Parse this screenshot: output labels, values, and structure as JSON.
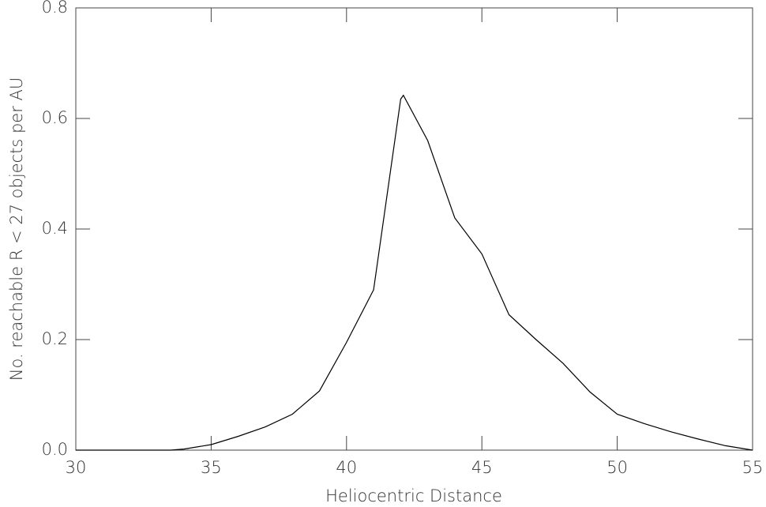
{
  "chart_data": {
    "type": "line",
    "xlabel": "Heliocentric Distance",
    "ylabel": "No. reachable R < 27 objects per AU",
    "x": [
      30,
      33.5,
      34,
      35,
      36,
      37,
      38,
      39,
      40,
      41,
      42,
      42.1,
      43,
      44,
      45,
      46,
      47,
      48,
      49,
      50,
      51,
      52,
      53,
      54,
      55
    ],
    "values": [
      0,
      0,
      0.002,
      0.01,
      0.025,
      0.042,
      0.065,
      0.107,
      0.195,
      0.29,
      0.635,
      0.642,
      0.56,
      0.42,
      0.355,
      0.245,
      0.2,
      0.157,
      0.105,
      0.065,
      0.048,
      0.033,
      0.02,
      0.008,
      0
    ],
    "color": "#000000",
    "xlim": [
      30,
      55
    ],
    "xticks": [
      30,
      35,
      40,
      45,
      50,
      55
    ],
    "ylim": [
      0,
      0.8
    ],
    "yticks": [
      {
        "value": 0,
        "label": "0.0"
      },
      0.2,
      0.4,
      0.6,
      0.8
    ]
  }
}
